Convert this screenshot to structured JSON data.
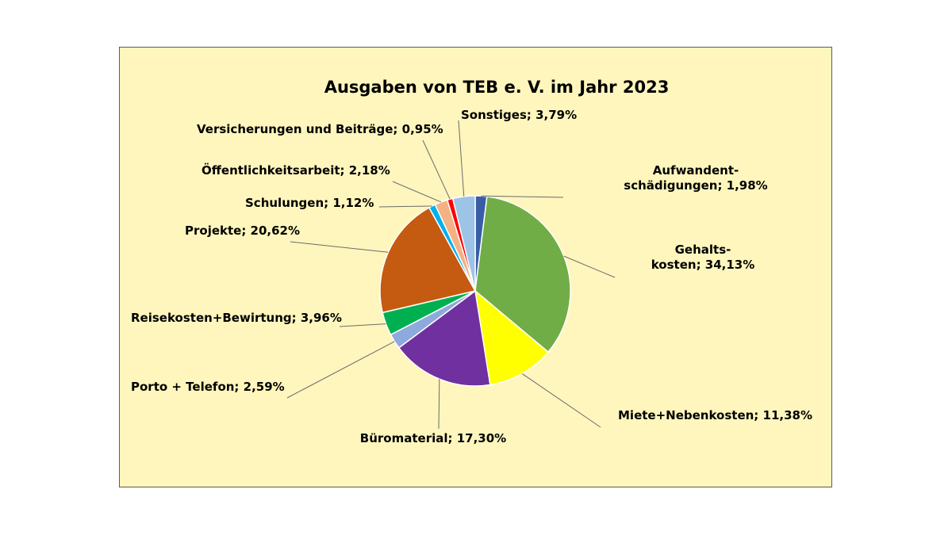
{
  "chart_data": {
    "type": "pie",
    "title": "Ausgaben von TEB e. V. im Jahr 2023",
    "background_color": "#FFF6BD",
    "border_color": "#5A5A5A",
    "start_angle_deg": 0,
    "direction": "clockwise",
    "slices": [
      {
        "name": "Aufwandentschädigungen",
        "label_lines": [
          "Aufwandent-",
          "schädigungen; 1,98%"
        ],
        "value": 1.98,
        "color": "#3A5DA8"
      },
      {
        "name": "Gehaltskosten",
        "label_lines": [
          "Gehalts-",
          "kosten; 34,13%"
        ],
        "value": 34.13,
        "color": "#70AD47"
      },
      {
        "name": "Miete+Nebenkosten",
        "label_lines": [
          "Miete+Nebenkosten; 11,38%"
        ],
        "value": 11.38,
        "color": "#FFFF00"
      },
      {
        "name": "Büromaterial",
        "label_lines": [
          "Büromaterial; 17,30%"
        ],
        "value": 17.3,
        "color": "#7030A0"
      },
      {
        "name": "Porto + Telefon",
        "label_lines": [
          "Porto + Telefon; 2,59%"
        ],
        "value": 2.59,
        "color": "#8EA9DB"
      },
      {
        "name": "Reisekosten+Bewirtung",
        "label_lines": [
          "Reisekosten+Bewirtung; 3,96%"
        ],
        "value": 3.96,
        "color": "#00B050"
      },
      {
        "name": "Projekte",
        "label_lines": [
          "Projekte; 20,62%"
        ],
        "value": 20.62,
        "color": "#C55A11"
      },
      {
        "name": "Schulungen",
        "label_lines": [
          "Schulungen; 1,12%"
        ],
        "value": 1.12,
        "color": "#00B0F0"
      },
      {
        "name": "Öffentlichkeitsarbeit",
        "label_lines": [
          "Öffentlichkeitsarbeit; 2,18%"
        ],
        "value": 2.18,
        "color": "#F4B183"
      },
      {
        "name": "Versicherungen und Beiträge",
        "label_lines": [
          "Versicherungen und Beiträge; 0,95%"
        ],
        "value": 0.95,
        "color": "#FF0000"
      },
      {
        "name": "Sonstiges",
        "label_lines": [
          "Sonstiges; 3,79%"
        ],
        "value": 3.79,
        "color": "#9DC3E6"
      }
    ]
  }
}
